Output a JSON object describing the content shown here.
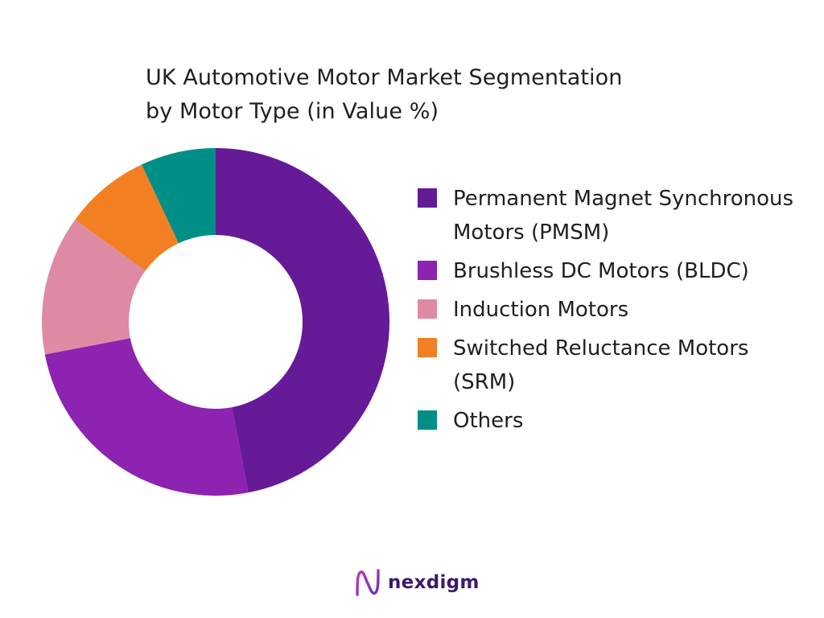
{
  "chart_data": {
    "type": "pie",
    "title_lines": [
      "UK Automotive Motor Market Segmentation",
      "by Motor Type (in Value %)"
    ],
    "categories": [
      "Permanent Magnet Synchronous Motors (PMSM)",
      "Brushless DC Motors (BLDC)",
      "Induction Motors",
      "Switched Reluctance Motors (SRM)",
      "Others"
    ],
    "values": [
      47,
      25,
      13,
      8,
      7
    ],
    "colors": [
      "#651a98",
      "#8e22b1",
      "#df8aa3",
      "#f27f21",
      "#008f87"
    ],
    "legend_position": "right",
    "donut": true
  },
  "legend": {
    "items": [
      {
        "label": "Permanent Magnet Synchronous Motors (PMSM)",
        "color": "#651a98"
      },
      {
        "label": "Brushless DC Motors (BLDC)",
        "color": "#8e22b1"
      },
      {
        "label": "Induction Motors",
        "color": "#df8aa3"
      },
      {
        "label": "Switched Reluctance Motors (SRM)",
        "color": "#f27f21"
      },
      {
        "label": "Others",
        "color": "#008f87"
      }
    ]
  },
  "logo": {
    "text": "nexdigm",
    "color": "#3a1a6e",
    "icon": "nexdigm-logo-icon"
  }
}
